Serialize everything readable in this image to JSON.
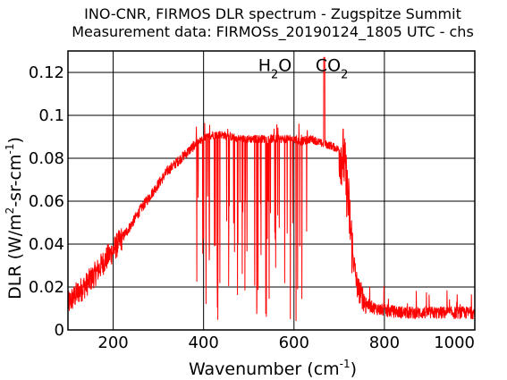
{
  "chart_data": {
    "type": "line",
    "title_line1": "INO-CNR, FIRMOS DLR spectrum - Zugspitze Summit",
    "title_line2": "Measurement data: FIRMOSs_20190124_1805 UTC - chs",
    "xlabel_main": "Wavenumber (cm",
    "xlabel_sup": "-1",
    "xlabel_end": ")",
    "ylabel_pre": "DLR (W/m",
    "ylabel_sup1": "2",
    "ylabel_mid": "-sr-cm",
    "ylabel_sup2": "-1",
    "ylabel_end": ")",
    "xlim": [
      100,
      1000
    ],
    "ylim": [
      0,
      0.13
    ],
    "x_ticks": [
      200,
      400,
      600,
      800,
      1000
    ],
    "x_tick_labels": [
      "200",
      "400",
      "600",
      "800",
      "1000"
    ],
    "y_ticks": [
      0,
      0.02,
      0.04,
      0.06,
      0.08,
      0.1,
      0.12
    ],
    "y_tick_labels": [
      "0",
      "0.02",
      "0.04",
      "0.06",
      "0.08",
      "0.1",
      "0.12"
    ],
    "grid": true,
    "line_color": "#ff0000",
    "annotations": [
      {
        "base": "H",
        "sub": "2",
        "tail": "O",
        "x": 588,
        "y": 0.129
      },
      {
        "base": "CO",
        "sub": "2",
        "tail": "",
        "x": 715,
        "y": 0.129
      }
    ],
    "series": [
      {
        "x": [
          100,
          120,
          140,
          160,
          180,
          200,
          220,
          240,
          260,
          280,
          300,
          320,
          340,
          360,
          380,
          400,
          420,
          440,
          460,
          480,
          500,
          520,
          540,
          560,
          580,
          600,
          610,
          620,
          640,
          660,
          680,
          700,
          710,
          720,
          730,
          740,
          760,
          780,
          800,
          850,
          900,
          950,
          1000
        ],
        "y": [
          0.012,
          0.017,
          0.021,
          0.026,
          0.032,
          0.037,
          0.043,
          0.049,
          0.056,
          0.062,
          0.068,
          0.074,
          0.078,
          0.082,
          0.086,
          0.089,
          0.091,
          0.091,
          0.09,
          0.089,
          0.089,
          0.089,
          0.089,
          0.089,
          0.089,
          0.089,
          0.088,
          0.088,
          0.089,
          0.087,
          0.086,
          0.084,
          0.08,
          0.06,
          0.035,
          0.02,
          0.012,
          0.01,
          0.009,
          0.008,
          0.008,
          0.008,
          0.008
        ]
      }
    ]
  }
}
